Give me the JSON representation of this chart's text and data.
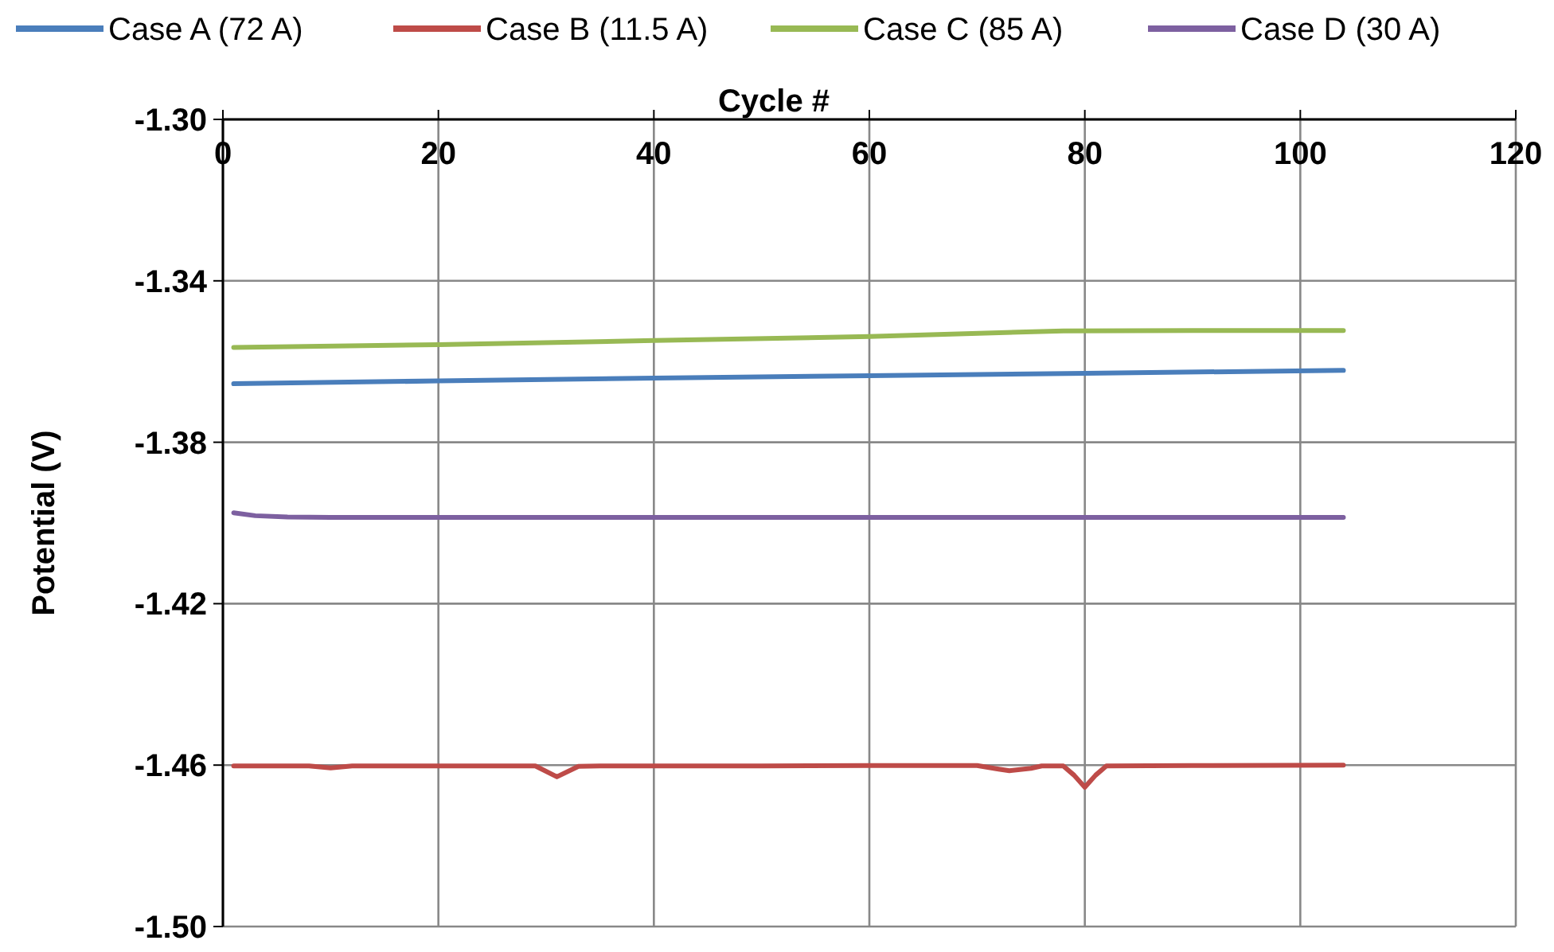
{
  "chart_data": {
    "type": "line",
    "xlabel": "Cycle #",
    "ylabel": "Potential (V)",
    "xlim": [
      0,
      120
    ],
    "xticks": [
      0,
      20,
      40,
      60,
      80,
      100,
      120
    ],
    "ylim": [
      -1.5,
      -1.3
    ],
    "yticks": [
      {
        "value": -1.5,
        "label": "-1.50"
      },
      {
        "value": -1.46,
        "label": "-1.46"
      },
      {
        "value": -1.42,
        "label": "-1.42"
      },
      {
        "value": -1.38,
        "label": "-1.38"
      },
      {
        "value": -1.34,
        "label": "-1.34"
      },
      {
        "value": -1.3,
        "label": "-1.30"
      }
    ],
    "grid": true,
    "legend": "top",
    "line_style": "solid",
    "marker": "none",
    "series": [
      {
        "name": "Case A (72 A)",
        "color": "#4a7ebb",
        "x": [
          1,
          20,
          40,
          60,
          80,
          104
        ],
        "values": [
          -1.3655,
          -1.3648,
          -1.3641,
          -1.3635,
          -1.3629,
          -1.3622
        ]
      },
      {
        "name": "Case B (11.5 A)",
        "color": "#be4b48",
        "x": [
          1,
          8,
          10,
          12,
          29,
          31,
          33,
          35,
          50,
          60,
          70,
          72,
          73,
          75,
          76,
          78,
          79,
          80,
          81,
          82,
          90,
          104
        ],
        "values": [
          -1.4602,
          -1.4602,
          -1.4607,
          -1.4602,
          -1.4602,
          -1.4629,
          -1.4603,
          -1.4602,
          -1.4602,
          -1.4601,
          -1.4601,
          -1.461,
          -1.4614,
          -1.4608,
          -1.4602,
          -1.4602,
          -1.4625,
          -1.4655,
          -1.4625,
          -1.4602,
          -1.4601,
          -1.46
        ]
      },
      {
        "name": "Case C (85 A)",
        "color": "#98b954",
        "x": [
          1,
          20,
          40,
          60,
          78,
          90,
          104
        ],
        "values": [
          -1.3565,
          -1.3558,
          -1.3548,
          -1.3538,
          -1.3524,
          -1.3523,
          -1.3523
        ]
      },
      {
        "name": "Case D (30 A)",
        "color": "#7d60a0",
        "x": [
          1,
          3,
          6,
          10,
          40,
          80,
          104
        ],
        "values": [
          -1.3975,
          -1.3982,
          -1.3985,
          -1.3986,
          -1.3986,
          -1.3986,
          -1.3986
        ]
      }
    ]
  }
}
